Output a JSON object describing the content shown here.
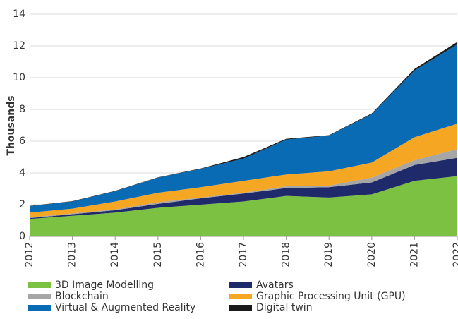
{
  "chart_data": {
    "type": "stacked_area",
    "y_label": "Thousands",
    "categories": [
      "2012",
      "2013",
      "2014",
      "2015",
      "2016",
      "2017",
      "2018",
      "2019",
      "2020",
      "2021",
      "2022"
    ],
    "series": [
      {
        "name": "3D Image Modelling",
        "color": "#7dc142",
        "values": [
          1.1,
          1.3,
          1.5,
          1.8,
          2.0,
          2.2,
          2.55,
          2.45,
          2.65,
          3.5,
          3.8
        ]
      },
      {
        "name": "Avatars",
        "color": "#1f2a6b",
        "values": [
          0.05,
          0.1,
          0.15,
          0.25,
          0.4,
          0.5,
          0.5,
          0.65,
          0.75,
          1.0,
          1.15
        ]
      },
      {
        "name": "Blockchain",
        "color": "#a6a6a6",
        "values": [
          0.05,
          0.05,
          0.05,
          0.1,
          0.05,
          0.05,
          0.1,
          0.1,
          0.3,
          0.3,
          0.55
        ]
      },
      {
        "name": "Graphic Processing Unit (GPU)",
        "color": "#f5a623",
        "values": [
          0.3,
          0.3,
          0.5,
          0.6,
          0.65,
          0.75,
          0.75,
          0.9,
          0.95,
          1.45,
          1.6
        ]
      },
      {
        "name": "Virtual & Augmented Reality",
        "color": "#0a6bb5",
        "values": [
          0.4,
          0.45,
          0.65,
          0.95,
          1.15,
          1.4,
          2.2,
          2.25,
          3.05,
          4.2,
          5.0
        ]
      },
      {
        "name": "Digital twin",
        "color": "#1a1a1a",
        "values": [
          0.02,
          0.02,
          0.02,
          0.02,
          0.03,
          0.1,
          0.05,
          0.03,
          0.05,
          0.1,
          0.15
        ]
      }
    ],
    "ylim": [
      0,
      14
    ],
    "yticks": [
      0,
      2,
      4,
      6,
      8,
      10,
      12,
      14
    ],
    "grid": true
  }
}
